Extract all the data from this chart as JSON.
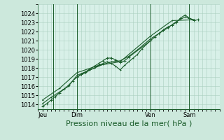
{
  "background_color": "#cce8dc",
  "plot_bg_color": "#d8f0e8",
  "grid_color": "#aacfbf",
  "line_color": "#1a5c2a",
  "marker_color": "#1a5c2a",
  "xlabel": "Pression niveau de la mer( hPa )",
  "xlim": [
    0,
    84
  ],
  "ylim": [
    1013.5,
    1025.0
  ],
  "yticks": [
    1014,
    1015,
    1016,
    1017,
    1018,
    1019,
    1020,
    1021,
    1022,
    1023,
    1024
  ],
  "xtick_labels": [
    "Jeu",
    "Dim",
    "Ven",
    "Sam"
  ],
  "xtick_positions": [
    2,
    18,
    52,
    70
  ],
  "vline_positions": [
    7,
    18,
    52,
    70
  ],
  "series1_x": [
    2,
    4,
    6,
    8,
    10,
    12,
    14,
    16,
    18,
    20,
    22,
    24,
    26,
    28,
    30,
    32,
    34,
    36,
    38,
    40,
    42,
    52,
    54,
    56,
    58,
    60,
    62,
    64,
    66,
    68,
    70,
    72,
    74
  ],
  "series1_y": [
    1013.8,
    1014.1,
    1014.5,
    1014.9,
    1015.3,
    1015.7,
    1016.1,
    1016.6,
    1017.0,
    1017.3,
    1017.6,
    1017.9,
    1018.2,
    1018.5,
    1018.8,
    1019.1,
    1019.1,
    1018.9,
    1018.6,
    1018.8,
    1019.2,
    1021.0,
    1021.4,
    1021.8,
    1022.2,
    1022.5,
    1022.7,
    1023.0,
    1023.5,
    1023.8,
    1023.5,
    1023.2,
    1023.3
  ],
  "series2_x": [
    2,
    6,
    10,
    14,
    18,
    22,
    26,
    30,
    34,
    38,
    42,
    46,
    52,
    56,
    60,
    64,
    68,
    72
  ],
  "series2_y": [
    1014.1,
    1014.8,
    1015.4,
    1016.0,
    1017.2,
    1017.6,
    1018.0,
    1018.4,
    1018.7,
    1018.8,
    1019.3,
    1020.0,
    1021.2,
    1021.8,
    1022.4,
    1023.1,
    1023.6,
    1023.3
  ],
  "series3_x": [
    2,
    10,
    18,
    28,
    38,
    52,
    62,
    72
  ],
  "series3_y": [
    1014.5,
    1015.8,
    1017.5,
    1018.3,
    1018.7,
    1021.5,
    1023.2,
    1023.3
  ],
  "series4_x": [
    18,
    20,
    22,
    24,
    26,
    28,
    30,
    32,
    34,
    36,
    38,
    40,
    42,
    44,
    46,
    48,
    52
  ],
  "series4_y": [
    1017.0,
    1017.3,
    1017.5,
    1017.8,
    1018.0,
    1018.3,
    1018.5,
    1018.7,
    1018.5,
    1018.2,
    1017.8,
    1018.3,
    1018.7,
    1019.1,
    1019.5,
    1020.1,
    1021.0
  ],
  "xlabel_fontsize": 8,
  "tick_fontsize": 6,
  "linewidth": 0.8,
  "markersize": 2.0
}
